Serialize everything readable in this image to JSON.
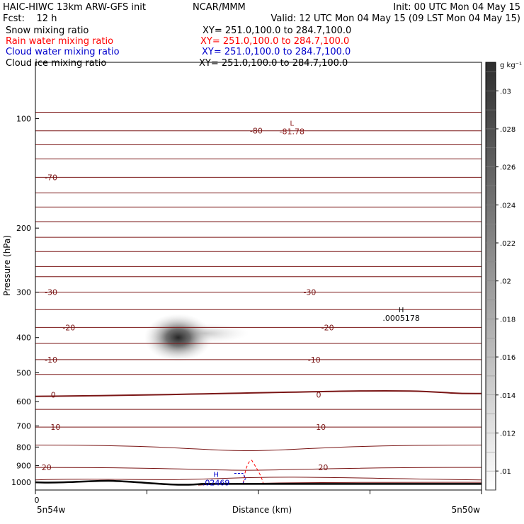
{
  "header": {
    "model": "HAIC-HIWC 13km ARW-GFS init",
    "center": "NCAR/MMM",
    "init": "Init: 00 UTC Mon 04 May 15",
    "fcst_label": "Fcst:",
    "fcst_value": "12 h",
    "valid": "Valid: 12 UTC Mon 04 May 15 (09 LST Mon 04 May 15)"
  },
  "legend": [
    {
      "field": "Snow mixing ratio",
      "xsec": "XY= 251.0,100.0 to 284.7,100.0",
      "color": "#000000"
    },
    {
      "field": "Rain water mixing ratio",
      "xsec": "XY= 251.0,100.0 to 284.7,100.0",
      "color": "#ff0000"
    },
    {
      "field": "Cloud water mixing ratio",
      "xsec": "XY= 251.0,100.0 to 284.7,100.0",
      "color": "#0000cc"
    },
    {
      "field": "Cloud ice mixing ratio",
      "xsec": "XY= 251.0,100.0 to 284.7,100.0",
      "color": "#000000"
    }
  ],
  "chart_data": {
    "type": "cross-section",
    "ylabel": "Pressure (hPa)",
    "xlabel": "Distance (km)",
    "x_start_tick": "0",
    "x_left_label": "5n54w",
    "x_right_label": "5n50w",
    "y_scale": "log-pressure",
    "ylim": [
      1050,
      70
    ],
    "xlim": [
      0,
      100
    ],
    "y_ticks": [
      "100",
      "200",
      "300",
      "400",
      "500",
      "600",
      "700",
      "800",
      "900",
      "1000"
    ],
    "colorbar": {
      "unit": "g kg⁻¹",
      "ticks": [
        ".01",
        ".012",
        ".014",
        ".016",
        ".018",
        ".02",
        ".022",
        ".024",
        ".026",
        ".028",
        ".03"
      ]
    },
    "temperature_contours": [
      {
        "label": "-80",
        "p": 108,
        "labels_at_x": [
          49.5
        ]
      },
      {
        "label": "-70",
        "p": 145,
        "labels_at_x": [
          3.5
        ]
      },
      {
        "label": "-30",
        "p": 300,
        "labels_at_x": [
          3.5,
          61.5
        ]
      },
      {
        "label": "-20",
        "p": 375,
        "labels_at_x": [
          7.5,
          65.5
        ]
      },
      {
        "label": "-10",
        "p": 460,
        "labels_at_x": [
          3.5,
          62.5
        ]
      },
      {
        "label": "0",
        "p": 575,
        "labels_at_x": [
          4,
          63.5
        ]
      },
      {
        "label": "10",
        "p": 705,
        "labels_at_x": [
          4.5,
          64
        ]
      },
      {
        "label": "20",
        "p": 910,
        "labels_at_x": [
          2.5,
          64.5
        ]
      }
    ],
    "extrema": [
      {
        "type": "L",
        "value": "-81.78",
        "x": 57.5,
        "p": 106,
        "color": "#8b1a1a"
      },
      {
        "type": "H",
        "value": ".0005178",
        "x": 82,
        "p": 345,
        "color": "#000000"
      },
      {
        "type": "H",
        "value": ".02469",
        "x": 40.5,
        "p": 980,
        "color": "#0000cc"
      }
    ],
    "shaded_maxima": [
      {
        "field": "Snow mixing ratio",
        "x": 32,
        "p": 400,
        "approx_max": 0.031
      }
    ],
    "terrain_p_min": 1000,
    "terrain_p_max": 1010
  },
  "colors": {
    "isotherm": "#7a1515",
    "terrain": "#000000",
    "rain": "#ff0000",
    "cloud_water": "#0000cc"
  }
}
